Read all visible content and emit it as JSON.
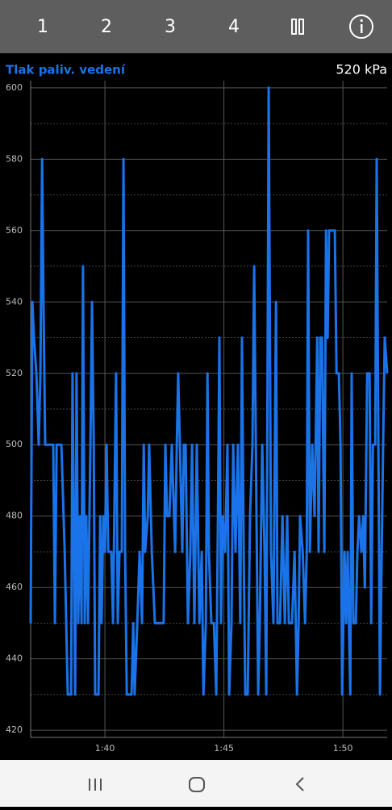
{
  "tabs": [
    "1",
    "2",
    "3",
    "4"
  ],
  "chart_data": {
    "type": "line",
    "title": "Tlak paliv. vedení",
    "readout": "520 kPa",
    "x": [
      96.88,
      96.95,
      97.02,
      97.12,
      97.22,
      97.29,
      97.36,
      97.42,
      97.49,
      97.56,
      97.83,
      97.9,
      97.97,
      98.17,
      98.31,
      98.44,
      98.58,
      98.64,
      98.75,
      98.81,
      98.88,
      98.95,
      99.02,
      99.08,
      99.15,
      99.22,
      99.29,
      99.39,
      99.46,
      99.53,
      99.59,
      99.73,
      99.8,
      99.86,
      99.93,
      100.0,
      100.07,
      100.14,
      100.27,
      100.34,
      100.47,
      100.54,
      100.61,
      100.71,
      100.78,
      100.85,
      100.92,
      101.12,
      101.19,
      101.25,
      101.36,
      101.46,
      101.56,
      101.63,
      101.69,
      101.8,
      101.86,
      101.97,
      102.1,
      102.31,
      102.47,
      102.54,
      102.61,
      102.71,
      102.81,
      102.95,
      103.02,
      103.08,
      103.15,
      103.25,
      103.32,
      103.39,
      103.49,
      103.59,
      103.66,
      103.76,
      103.86,
      103.97,
      104.07,
      104.14,
      104.24,
      104.31,
      104.37,
      104.47,
      104.58,
      104.68,
      104.75,
      104.81,
      104.88,
      104.95,
      105.05,
      105.15,
      105.22,
      105.32,
      105.39,
      105.49,
      105.59,
      105.69,
      105.76,
      105.83,
      105.9,
      106.0,
      106.1,
      106.2,
      106.27,
      106.37,
      106.44,
      106.51,
      106.61,
      106.71,
      106.78,
      106.88,
      106.98,
      107.08,
      107.19,
      107.25,
      107.36,
      107.46,
      107.56,
      107.66,
      107.73,
      107.86,
      107.97,
      108.07,
      108.14,
      108.2,
      108.31,
      108.41,
      108.48,
      108.54,
      108.61,
      108.71,
      108.81,
      108.92,
      108.98,
      109.05,
      109.12,
      109.22,
      109.29,
      109.36,
      109.42,
      109.49,
      109.56,
      109.66,
      109.73,
      109.83,
      109.9,
      109.97,
      110.07,
      110.14,
      110.2,
      110.31,
      110.37,
      110.44,
      110.54,
      110.61,
      110.68,
      110.78,
      110.85,
      110.92,
      111.02,
      111.12,
      111.19,
      111.26,
      111.36,
      111.42,
      111.49,
      111.56,
      111.63,
      111.69,
      111.76,
      111.86
    ],
    "series": [
      {
        "name": "Tlak paliv. vedení",
        "color": "#1a73e8",
        "values": [
          450,
          540,
          530,
          520,
          500,
          520,
          580,
          540,
          500,
          500,
          500,
          450,
          500,
          500,
          470,
          430,
          430,
          520,
          430,
          520,
          450,
          480,
          450,
          550,
          450,
          480,
          450,
          500,
          540,
          500,
          430,
          430,
          480,
          450,
          480,
          470,
          500,
          470,
          470,
          450,
          520,
          450,
          470,
          470,
          580,
          470,
          430,
          430,
          450,
          430,
          450,
          470,
          450,
          500,
          470,
          480,
          500,
          470,
          450,
          450,
          450,
          500,
          480,
          480,
          500,
          470,
          500,
          520,
          500,
          470,
          500,
          500,
          450,
          470,
          500,
          450,
          500,
          450,
          470,
          430,
          450,
          520,
          470,
          450,
          450,
          430,
          480,
          530,
          450,
          480,
          470,
          500,
          430,
          450,
          500,
          470,
          500,
          450,
          530,
          470,
          430,
          430,
          480,
          500,
          550,
          480,
          430,
          450,
          500,
          470,
          430,
          600,
          470,
          450,
          540,
          450,
          450,
          480,
          450,
          480,
          450,
          450,
          470,
          430,
          450,
          480,
          470,
          450,
          470,
          560,
          470,
          500,
          480,
          530,
          470,
          530,
          530,
          470,
          560,
          530,
          560,
          560,
          560,
          560,
          520,
          520,
          500,
          430,
          470,
          450,
          470,
          430,
          520,
          450,
          450,
          470,
          480,
          470,
          480,
          460,
          520,
          520,
          450,
          500,
          500,
          580,
          500,
          430,
          470,
          500,
          530,
          520
        ]
      }
    ],
    "xlim": [
      96.88,
      111.86
    ],
    "xticks": [
      {
        "value": 100,
        "label": "1:40"
      },
      {
        "value": 105,
        "label": "1:45"
      },
      {
        "value": 110,
        "label": "1:50"
      }
    ],
    "ylim": [
      418,
      602
    ],
    "yticks": [
      420,
      440,
      460,
      480,
      500,
      520,
      540,
      560,
      580,
      600
    ],
    "grid": true
  }
}
